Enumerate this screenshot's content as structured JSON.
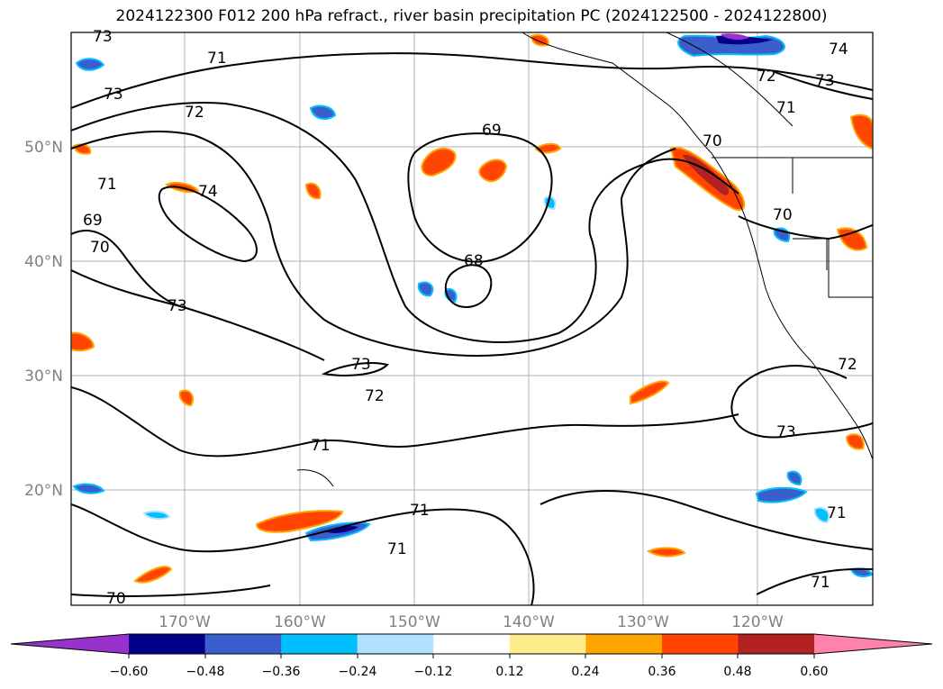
{
  "title": "2024122300 F012 200 hPa refract., river basin precipitation PC (2024122500 - 2024122800)",
  "map": {
    "lon_labels": [
      "170°W",
      "160°W",
      "150°W",
      "140°W",
      "130°W",
      "120°W"
    ],
    "lat_labels": [
      "50°N",
      "40°N",
      "30°N",
      "20°N"
    ],
    "contour_labels": [
      "73",
      "71",
      "73",
      "72",
      "69",
      "74",
      "73",
      "72",
      "71",
      "70",
      "70",
      "71",
      "69",
      "70",
      "74",
      "73",
      "68",
      "73",
      "72",
      "71",
      "73",
      "71",
      "71",
      "70",
      "71",
      "71",
      "72"
    ]
  },
  "colorbar": {
    "ticks": [
      "−0.60",
      "−0.48",
      "−0.36",
      "−0.24",
      "−0.12",
      "0.12",
      "0.24",
      "0.36",
      "0.48",
      "0.60"
    ],
    "colors": [
      "#9932cc",
      "#00008b",
      "#3a5fcd",
      "#00bfff",
      "#b0e2ff",
      "#ffffff",
      "#ffec8b",
      "#ffa500",
      "#ff4500",
      "#b22222",
      "#ff82ab"
    ]
  }
}
